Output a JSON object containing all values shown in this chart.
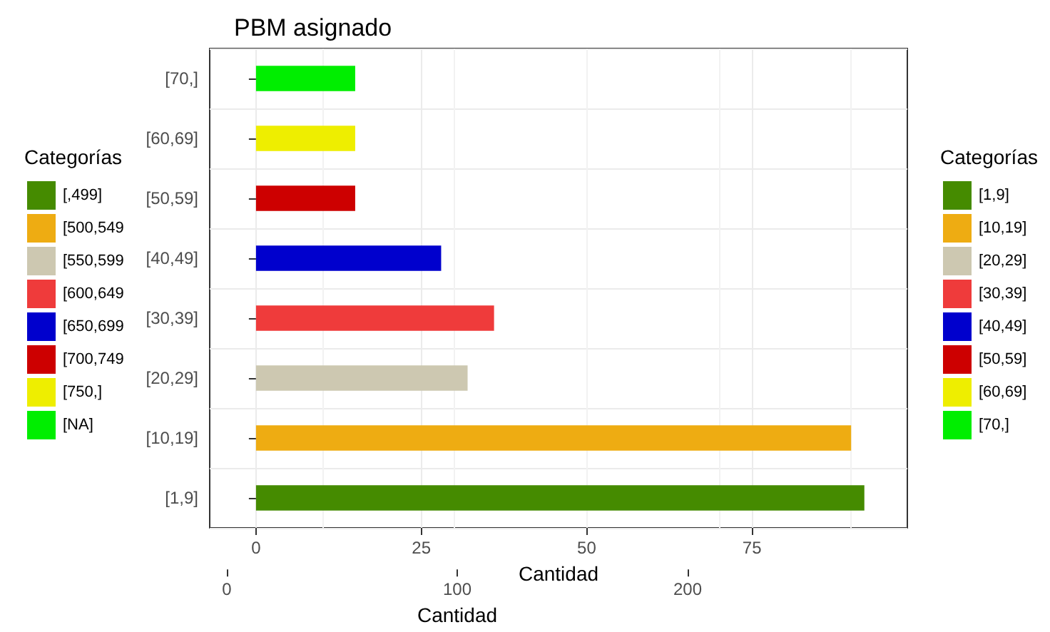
{
  "chart_data": {
    "type": "bar",
    "orientation": "horizontal",
    "stacked": true,
    "title": "PBM asignado",
    "xlabel": "Cantidad",
    "xlim": [
      -7,
      98.5
    ],
    "xticks": [
      0,
      25,
      50,
      75
    ],
    "x2label": "Cantidad",
    "x2lim": [
      0,
      200
    ],
    "x2ticks": [
      0,
      100,
      200
    ],
    "legend": "right",
    "legend_title": "Categorías",
    "grid": true,
    "categories": [
      "[70,]",
      "[60,69]",
      "[50,59]",
      "[40,49]",
      "[30,39]",
      "[20,29]",
      "[10,19]",
      "[1,9]"
    ],
    "series": [
      {
        "name": "[1,9]",
        "color": "#458b00",
        "values": [
          null,
          null,
          null,
          null,
          null,
          null,
          null,
          92
        ]
      },
      {
        "name": "[10,19]",
        "color": "#eeac12",
        "values": [
          null,
          null,
          null,
          null,
          null,
          null,
          90,
          null
        ]
      },
      {
        "name": "[20,29]",
        "color": "#cdc8b1",
        "values": [
          null,
          null,
          null,
          null,
          null,
          32,
          null,
          null
        ]
      },
      {
        "name": "[30,39]",
        "color": "#ef3b3b",
        "values": [
          null,
          null,
          null,
          null,
          36,
          null,
          null,
          null
        ]
      },
      {
        "name": "[40,49]",
        "color": "#0000cd",
        "values": [
          null,
          null,
          null,
          28,
          null,
          null,
          null,
          null
        ]
      },
      {
        "name": "[50,59]",
        "color": "#cd0000",
        "values": [
          null,
          null,
          15,
          null,
          null,
          null,
          null,
          null
        ]
      },
      {
        "name": "[60,69]",
        "color": "#eeee00",
        "values": [
          null,
          15,
          null,
          null,
          null,
          null,
          null,
          null
        ]
      },
      {
        "name": "[70,]",
        "color": "#00ee00",
        "values": [
          15,
          null,
          null,
          null,
          null,
          null,
          null,
          null
        ]
      },
      {
        "name": "[,499]",
        "color": "#458b00",
        "axis": "x2",
        "values": [
          null,
          null,
          null,
          null,
          null,
          null,
          null,
          null
        ]
      },
      {
        "name": "[500,549",
        "color": "#eeac12",
        "axis": "x2",
        "values": [
          null,
          null,
          null,
          null,
          null,
          null,
          null,
          null
        ]
      },
      {
        "name": "[550,599",
        "color": "#cdc8b1",
        "axis": "x2",
        "values": [
          null,
          null,
          null,
          null,
          null,
          null,
          null,
          null
        ]
      },
      {
        "name": "[600,649",
        "color": "#ef3b3b",
        "axis": "x2",
        "values": [
          null,
          null,
          null,
          null,
          null,
          null,
          null,
          null
        ]
      },
      {
        "name": "[650,699",
        "color": "#0000cd",
        "axis": "x2",
        "values": [
          null,
          null,
          null,
          null,
          null,
          null,
          null,
          null
        ]
      },
      {
        "name": "[700,749",
        "color": "#cd0000",
        "axis": "x2",
        "values": [
          null,
          null,
          null,
          null,
          null,
          null,
          null,
          null
        ]
      },
      {
        "name": "[750,]",
        "color": "#eeee00",
        "axis": "x2",
        "values": [
          null,
          null,
          null,
          null,
          null,
          null,
          null,
          null
        ]
      },
      {
        "name": "[NA]",
        "color": "#00ee00",
        "axis": "x2",
        "values": [
          null,
          null,
          null,
          null,
          null,
          null,
          null,
          null
        ]
      }
    ]
  }
}
